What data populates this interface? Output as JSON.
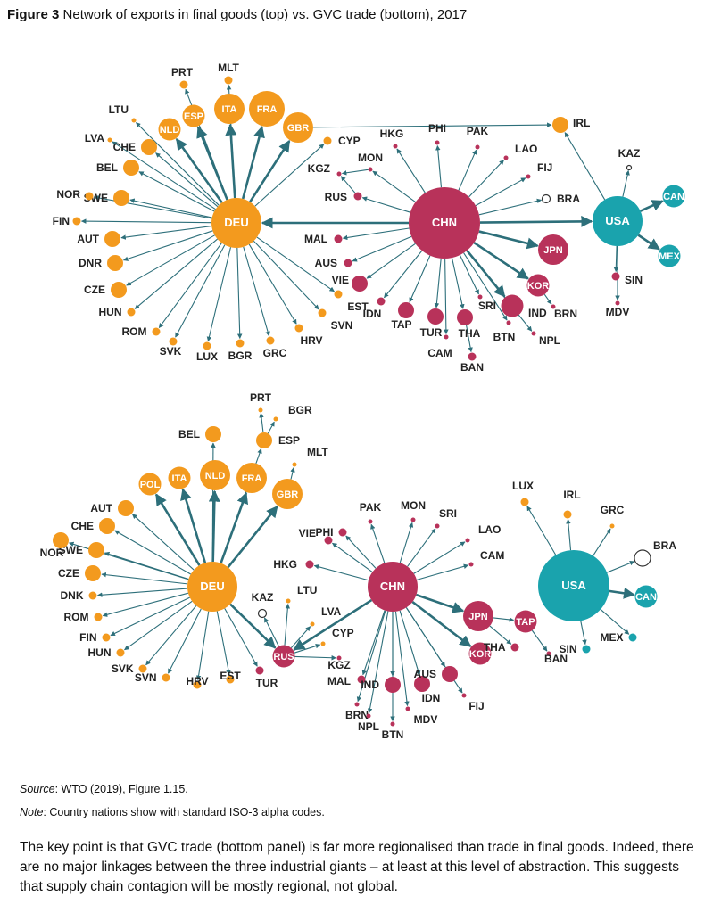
{
  "figure": {
    "number": "Figure 3",
    "title": "Network of exports in final goods (top) vs. GVC trade (bottom), 2017"
  },
  "colors": {
    "europe": "#f39a1e",
    "asia": "#b8325a",
    "america": "#1aa3ad",
    "edge": "#2d6f7a"
  },
  "top": {
    "nodes": [
      {
        "id": "DEU",
        "g": "europe",
        "s": 5
      },
      {
        "id": "CHN",
        "g": "asia",
        "s": 6
      },
      {
        "id": "USA",
        "g": "america",
        "s": 5
      },
      {
        "id": "FRA",
        "g": "europe",
        "s": 4
      },
      {
        "id": "ITA",
        "g": "europe",
        "s": 3
      },
      {
        "id": "ESP",
        "g": "europe",
        "s": 2
      },
      {
        "id": "NLD",
        "g": "europe",
        "s": 2
      },
      {
        "id": "GBR",
        "g": "europe",
        "s": 3
      },
      {
        "id": "PRT",
        "g": "europe",
        "s": 0
      },
      {
        "id": "MLT",
        "g": "europe",
        "s": 0
      },
      {
        "id": "LTU",
        "g": "europe",
        "s": -1
      },
      {
        "id": "LVA",
        "g": "europe",
        "s": -1
      },
      {
        "id": "CHE",
        "g": "europe",
        "s": 1
      },
      {
        "id": "BEL",
        "g": "europe",
        "s": 1
      },
      {
        "id": "SWE",
        "g": "europe",
        "s": 1
      },
      {
        "id": "NOR",
        "g": "europe",
        "s": 0
      },
      {
        "id": "FIN",
        "g": "europe",
        "s": 0
      },
      {
        "id": "AUT",
        "g": "europe",
        "s": 1
      },
      {
        "id": "DNR",
        "g": "europe",
        "s": 1
      },
      {
        "id": "CZE",
        "g": "europe",
        "s": 1
      },
      {
        "id": "HUN",
        "g": "europe",
        "s": 0
      },
      {
        "id": "ROM",
        "g": "europe",
        "s": 0
      },
      {
        "id": "SVK",
        "g": "europe",
        "s": 0
      },
      {
        "id": "LUX",
        "g": "europe",
        "s": 0
      },
      {
        "id": "BGR",
        "g": "europe",
        "s": 0
      },
      {
        "id": "GRC",
        "g": "europe",
        "s": 0
      },
      {
        "id": "HRV",
        "g": "europe",
        "s": 0
      },
      {
        "id": "SVN",
        "g": "europe",
        "s": 0
      },
      {
        "id": "EST",
        "g": "europe",
        "s": 0
      },
      {
        "id": "CYP",
        "g": "europe",
        "s": 0
      },
      {
        "id": "IRL",
        "g": "europe",
        "s": 1
      },
      {
        "id": "JPN",
        "g": "asia",
        "s": 3
      },
      {
        "id": "KOR",
        "g": "asia",
        "s": 2
      },
      {
        "id": "HKG",
        "g": "asia",
        "s": -1
      },
      {
        "id": "PHI",
        "g": "asia",
        "s": -1
      },
      {
        "id": "PAK",
        "g": "asia",
        "s": -1
      },
      {
        "id": "LAO",
        "g": "asia",
        "s": -1
      },
      {
        "id": "FIJ",
        "g": "asia",
        "s": -1
      },
      {
        "id": "MON",
        "g": "asia",
        "s": -1
      },
      {
        "id": "KGZ",
        "g": "asia",
        "s": -1
      },
      {
        "id": "RUS",
        "g": "asia",
        "s": 0
      },
      {
        "id": "MAL",
        "g": "asia",
        "s": 0
      },
      {
        "id": "AUS",
        "g": "asia",
        "s": 0
      },
      {
        "id": "VIE",
        "g": "asia",
        "s": 1
      },
      {
        "id": "IDN",
        "g": "asia",
        "s": 0
      },
      {
        "id": "TAP",
        "g": "asia",
        "s": 1
      },
      {
        "id": "TUR",
        "g": "asia",
        "s": 1
      },
      {
        "id": "THA",
        "g": "asia",
        "s": 1
      },
      {
        "id": "CAM",
        "g": "asia",
        "s": -1
      },
      {
        "id": "BAN",
        "g": "asia",
        "s": 0
      },
      {
        "id": "SRI",
        "g": "asia",
        "s": -1
      },
      {
        "id": "IND",
        "g": "asia",
        "s": 2
      },
      {
        "id": "BTN",
        "g": "asia",
        "s": -1
      },
      {
        "id": "NPL",
        "g": "asia",
        "s": -1
      },
      {
        "id": "BRN",
        "g": "asia",
        "s": -1
      },
      {
        "id": "SIN",
        "g": "asia",
        "s": 0
      },
      {
        "id": "MDV",
        "g": "asia",
        "s": -1
      },
      {
        "id": "CAN",
        "g": "america",
        "s": 2
      },
      {
        "id": "MEX",
        "g": "america",
        "s": 2
      },
      {
        "id": "BRA",
        "g": "hollow",
        "s": 0
      },
      {
        "id": "KAZ",
        "g": "hollow",
        "s": -1
      }
    ]
  },
  "bottom": {
    "nodes": [
      {
        "id": "DEU",
        "g": "europe",
        "s": 5
      },
      {
        "id": "CHN",
        "g": "asia",
        "s": 5
      },
      {
        "id": "USA",
        "g": "america",
        "s": 6
      },
      {
        "id": "BEL",
        "g": "europe",
        "s": 1
      },
      {
        "id": "PRT",
        "g": "europe",
        "s": -1
      },
      {
        "id": "BGR",
        "g": "europe",
        "s": -1
      },
      {
        "id": "ESP",
        "g": "europe",
        "s": 1
      },
      {
        "id": "MLT",
        "g": "europe",
        "s": -1
      },
      {
        "id": "POL",
        "g": "europe",
        "s": 2
      },
      {
        "id": "ITA",
        "g": "europe",
        "s": 2
      },
      {
        "id": "NLD",
        "g": "europe",
        "s": 3
      },
      {
        "id": "FRA",
        "g": "europe",
        "s": 3
      },
      {
        "id": "GBR",
        "g": "europe",
        "s": 3
      },
      {
        "id": "AUT",
        "g": "europe",
        "s": 1
      },
      {
        "id": "CHE",
        "g": "europe",
        "s": 1
      },
      {
        "id": "SWE",
        "g": "europe",
        "s": 1
      },
      {
        "id": "NOR",
        "g": "europe",
        "s": 1
      },
      {
        "id": "CZE",
        "g": "europe",
        "s": 1
      },
      {
        "id": "DNK",
        "g": "europe",
        "s": 0
      },
      {
        "id": "ROM",
        "g": "europe",
        "s": 0
      },
      {
        "id": "FIN",
        "g": "europe",
        "s": 0
      },
      {
        "id": "HUN",
        "g": "europe",
        "s": 0
      },
      {
        "id": "SVK",
        "g": "europe",
        "s": 0
      },
      {
        "id": "SVN",
        "g": "europe",
        "s": 0
      },
      {
        "id": "HRV",
        "g": "europe",
        "s": 0
      },
      {
        "id": "EST",
        "g": "europe",
        "s": 0
      },
      {
        "id": "LTU",
        "g": "europe",
        "s": -1
      },
      {
        "id": "LVA",
        "g": "europe",
        "s": -1
      },
      {
        "id": "CYP",
        "g": "europe",
        "s": -1
      },
      {
        "id": "KAZ",
        "g": "hollow",
        "s": 0
      },
      {
        "id": "RUS",
        "g": "asia",
        "s": 2
      },
      {
        "id": "TUR",
        "g": "asia",
        "s": 0
      },
      {
        "id": "KGZ",
        "g": "asia",
        "s": -1
      },
      {
        "id": "MAL",
        "g": "asia",
        "s": 0
      },
      {
        "id": "BRN",
        "g": "asia",
        "s": -1
      },
      {
        "id": "NPL",
        "g": "asia",
        "s": -1
      },
      {
        "id": "IND",
        "g": "asia",
        "s": 1
      },
      {
        "id": "BTN",
        "g": "asia",
        "s": -1
      },
      {
        "id": "MDV",
        "g": "asia",
        "s": -1
      },
      {
        "id": "IDN",
        "g": "asia",
        "s": 1
      },
      {
        "id": "FIJ",
        "g": "asia",
        "s": -1
      },
      {
        "id": "AUS",
        "g": "asia",
        "s": 1
      },
      {
        "id": "KOR",
        "g": "asia",
        "s": 2
      },
      {
        "id": "JPN",
        "g": "asia",
        "s": 3
      },
      {
        "id": "TAP",
        "g": "asia",
        "s": 2
      },
      {
        "id": "THA",
        "g": "asia",
        "s": 0
      },
      {
        "id": "BAN",
        "g": "asia",
        "s": -1
      },
      {
        "id": "PHI",
        "g": "asia",
        "s": 0
      },
      {
        "id": "PAK",
        "g": "asia",
        "s": -1
      },
      {
        "id": "MON",
        "g": "asia",
        "s": -1
      },
      {
        "id": "SRI",
        "g": "asia",
        "s": -1
      },
      {
        "id": "LAO",
        "g": "asia",
        "s": -1
      },
      {
        "id": "CAM",
        "g": "asia",
        "s": -1
      },
      {
        "id": "VIE",
        "g": "asia",
        "s": 0
      },
      {
        "id": "HKG",
        "g": "asia",
        "s": 0
      },
      {
        "id": "LUX",
        "g": "europe",
        "s": 0
      },
      {
        "id": "IRL",
        "g": "europe",
        "s": 0
      },
      {
        "id": "GRC",
        "g": "europe",
        "s": -1
      },
      {
        "id": "BRA",
        "g": "hollow",
        "s": 1
      },
      {
        "id": "CAN",
        "g": "america",
        "s": 2
      },
      {
        "id": "MEX",
        "g": "america",
        "s": 0
      },
      {
        "id": "SIN",
        "g": "america",
        "s": 0
      }
    ]
  },
  "source": {
    "label": "Source",
    "text": ": WTO (2019), Figure 1.15."
  },
  "note": {
    "label": "Note",
    "text": ": Country nations show with standard ISO-3 alpha codes."
  },
  "takeaway": "The key point is that GVC trade (bottom panel) is far more regionalised than trade in final goods. Indeed, there are no major linkages between the three industrial giants – at least at this level of abstraction. This suggests that supply chain contagion will be mostly regional, not global."
}
